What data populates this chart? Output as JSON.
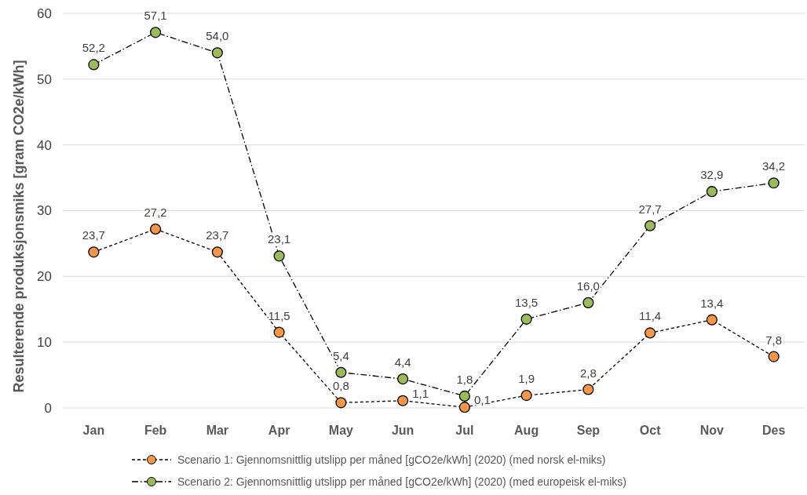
{
  "chart_data": {
    "type": "line",
    "ylabel": "Resulterende produksjonsmiks [gram CO2e/kWh]",
    "categories": [
      "Jan",
      "Feb",
      "Mar",
      "Apr",
      "May",
      "Jun",
      "Jul",
      "Aug",
      "Sep",
      "Oct",
      "Nov",
      "Des"
    ],
    "series": [
      {
        "name": "Scenario 1: Gjennomsnittlig utslipp per måned [gCO2e/kWh] (2020) (med norsk el-miks)",
        "color": "#f79646",
        "line_style": "dashed",
        "values": [
          23.7,
          27.2,
          23.7,
          11.5,
          0.8,
          1.1,
          0.1,
          1.9,
          2.8,
          11.4,
          13.4,
          7.8
        ],
        "value_labels": [
          "23,7",
          "27,2",
          "23,7",
          "11,5",
          "0,8",
          "1,1",
          "0,1",
          "1,9",
          "2,8",
          "11,4",
          "13,4",
          "7,8"
        ]
      },
      {
        "name": "Scenario 2: Gjennomsnittlig utslipp per måned [gCO2e/kWh] (2020)  (med europeisk el-miks)",
        "color": "#9bbb59",
        "line_style": "dashed",
        "values": [
          52.2,
          57.1,
          54.0,
          23.1,
          5.4,
          4.4,
          1.8,
          13.5,
          16.0,
          27.7,
          32.9,
          34.2
        ],
        "value_labels": [
          "52,2",
          "57,1",
          "54,0",
          "23,1",
          "5,4",
          "4,4",
          "1,8",
          "13,5",
          "16,0",
          "27,7",
          "32,9",
          "34,2"
        ]
      }
    ],
    "ylim": [
      0,
      60
    ],
    "yticks": [
      0,
      10,
      20,
      30,
      40,
      50,
      60
    ],
    "grid": "y",
    "legend": "bottom",
    "marker": "circle"
  }
}
